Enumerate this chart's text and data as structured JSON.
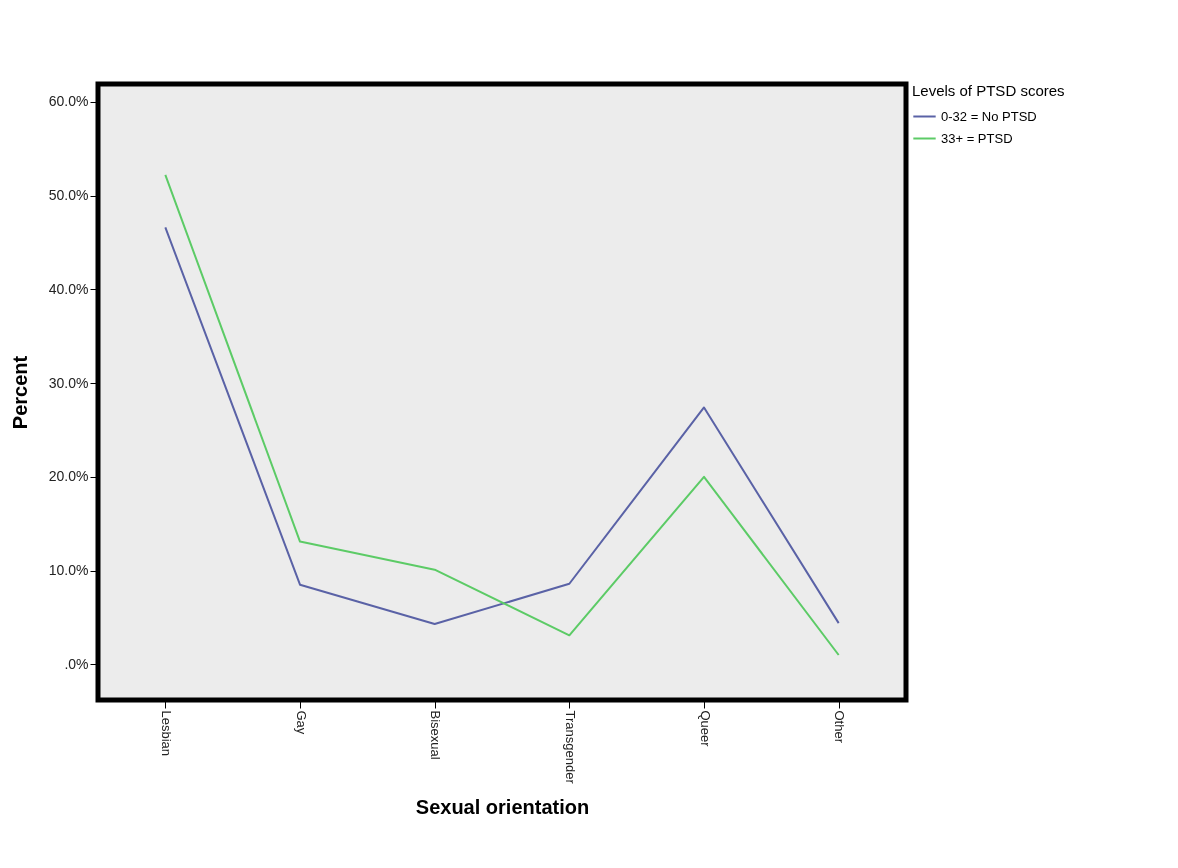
{
  "chart_data": {
    "type": "line",
    "xlabel": "Sexual orientation",
    "ylabel": "Percent",
    "legend_title": "Levels of PTSD scores",
    "legend": "top right",
    "grid": false,
    "categories": [
      "Lesbian",
      "Gay",
      "Bisexual",
      "Transgender",
      "Queer",
      "Other"
    ],
    "ylim": [
      -3.8,
      61.9
    ],
    "yticks": [
      {
        "value": 0,
        "label": ".0%"
      },
      {
        "value": 10,
        "label": "10.0%"
      },
      {
        "value": 20,
        "label": "20.0%"
      },
      {
        "value": 30,
        "label": "30.0%"
      },
      {
        "value": 40,
        "label": "40.0%"
      },
      {
        "value": 50,
        "label": "50.0%"
      },
      {
        "value": 60,
        "label": "60.0%"
      }
    ],
    "series": [
      {
        "name": "0-32 = No PTSD",
        "color": "#5a62a6",
        "values": [
          46.6,
          8.5,
          4.3,
          8.6,
          27.4,
          4.4
        ]
      },
      {
        "name": "33+ = PTSD",
        "color": "#5ccb66",
        "values": [
          52.2,
          13.1,
          10.1,
          3.1,
          20.0,
          1.0
        ]
      }
    ]
  }
}
